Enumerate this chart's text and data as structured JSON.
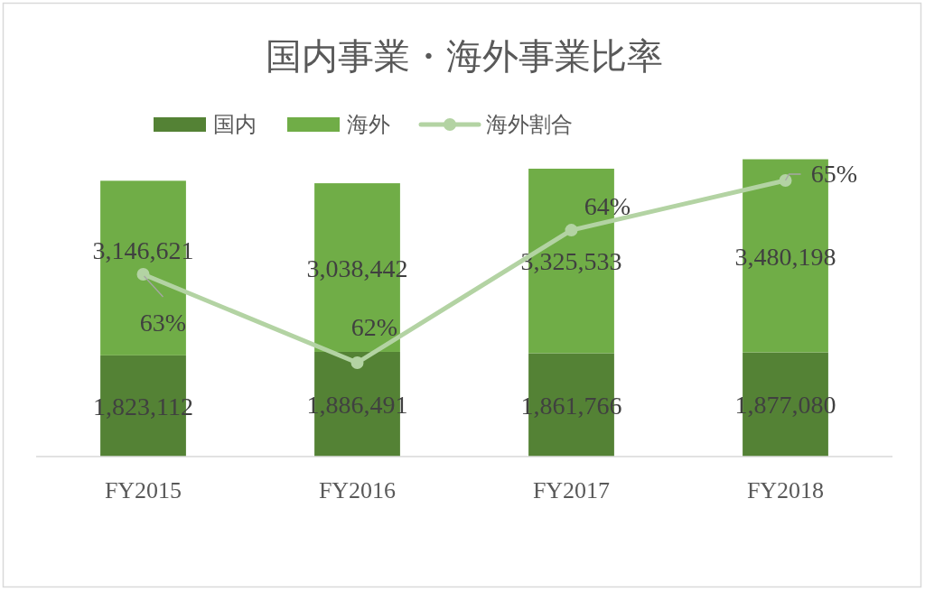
{
  "chart_data": {
    "type": "bar",
    "title": "国内事業・海外事業比率",
    "categories": [
      "FY2015",
      "FY2016",
      "FY2017",
      "FY2018"
    ],
    "stacked": true,
    "series": [
      {
        "name": "国内",
        "color": "#548235",
        "values": [
          1823112,
          1886491,
          1861766,
          1877080
        ],
        "value_labels": [
          "1,823,112",
          "1,886,491",
          "1,861,766",
          "1,877,080"
        ]
      },
      {
        "name": "海外",
        "color": "#70ad47",
        "values": [
          3146621,
          3038442,
          3325533,
          3480198
        ],
        "value_labels": [
          "3,146,621",
          "3,038,442",
          "3,325,533",
          "3,480,198"
        ]
      },
      {
        "name": "海外割合",
        "type": "line",
        "axis": "y2",
        "color": "#b3d3a3",
        "marker": "circle",
        "values": [
          63.3,
          61.7,
          64.1,
          65.0
        ],
        "value_labels": [
          "63%",
          "62%",
          "64%",
          "65%"
        ]
      }
    ],
    "tick_labels": "x",
    "legend": "top"
  }
}
